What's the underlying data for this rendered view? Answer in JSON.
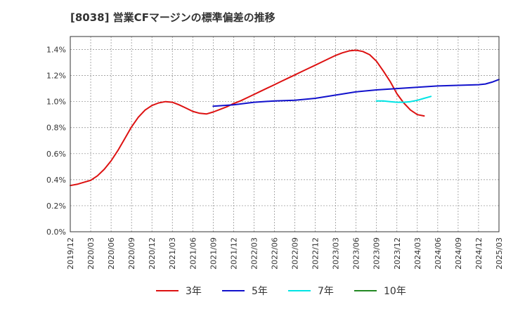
{
  "chart_data": {
    "type": "line",
    "title": "[8038]  営業CFマージンの標準偏差の推移",
    "xlabel": "",
    "ylabel": "",
    "ylim": [
      0,
      1.5
    ],
    "y_ticks": [
      0,
      0.2,
      0.4,
      0.6,
      0.8,
      1.0,
      1.2,
      1.4
    ],
    "y_tick_labels": [
      "0.0%",
      "0.2%",
      "0.4%",
      "0.6%",
      "0.8%",
      "1.0%",
      "1.2%",
      "1.4%"
    ],
    "x_tick_labels": [
      "2019/12",
      "2020/03",
      "2020/06",
      "2020/09",
      "2020/12",
      "2021/03",
      "2021/06",
      "2021/09",
      "2021/12",
      "2022/03",
      "2022/06",
      "2022/09",
      "2022/12",
      "2023/03",
      "2023/06",
      "2023/09",
      "2023/12",
      "2024/03",
      "2024/06",
      "2024/09",
      "2024/12",
      "2025/03"
    ],
    "grid": true,
    "legend_position": "bottom",
    "series": [
      {
        "name": "3年",
        "color": "#dd1111",
        "points": [
          [
            "2019/12",
            0.355
          ],
          [
            "2020/01",
            0.365
          ],
          [
            "2020/02",
            0.38
          ],
          [
            "2020/03",
            0.395
          ],
          [
            "2020/04",
            0.43
          ],
          [
            "2020/05",
            0.48
          ],
          [
            "2020/06",
            0.545
          ],
          [
            "2020/07",
            0.625
          ],
          [
            "2020/08",
            0.715
          ],
          [
            "2020/09",
            0.805
          ],
          [
            "2020/10",
            0.88
          ],
          [
            "2020/11",
            0.935
          ],
          [
            "2020/12",
            0.97
          ],
          [
            "2021/01",
            0.99
          ],
          [
            "2021/02",
            1.0
          ],
          [
            "2021/03",
            0.995
          ],
          [
            "2021/04",
            0.975
          ],
          [
            "2021/05",
            0.95
          ],
          [
            "2021/06",
            0.925
          ],
          [
            "2021/07",
            0.91
          ],
          [
            "2021/08",
            0.905
          ],
          [
            "2021/09",
            0.92
          ],
          [
            "2021/10",
            0.94
          ],
          [
            "2021/11",
            0.96
          ],
          [
            "2021/12",
            0.985
          ],
          [
            "2022/01",
            1.005
          ],
          [
            "2022/02",
            1.03
          ],
          [
            "2022/03",
            1.055
          ],
          [
            "2022/04",
            1.08
          ],
          [
            "2022/05",
            1.105
          ],
          [
            "2022/06",
            1.13
          ],
          [
            "2022/07",
            1.155
          ],
          [
            "2022/08",
            1.18
          ],
          [
            "2022/09",
            1.205
          ],
          [
            "2022/10",
            1.23
          ],
          [
            "2022/11",
            1.255
          ],
          [
            "2022/12",
            1.28
          ],
          [
            "2023/01",
            1.305
          ],
          [
            "2023/02",
            1.33
          ],
          [
            "2023/03",
            1.355
          ],
          [
            "2023/04",
            1.375
          ],
          [
            "2023/05",
            1.39
          ],
          [
            "2023/06",
            1.395
          ],
          [
            "2023/07",
            1.385
          ],
          [
            "2023/08",
            1.36
          ],
          [
            "2023/09",
            1.31
          ],
          [
            "2023/10",
            1.235
          ],
          [
            "2023/11",
            1.155
          ],
          [
            "2023/12",
            1.06
          ],
          [
            "2024/01",
            0.99
          ],
          [
            "2024/02",
            0.935
          ],
          [
            "2024/03",
            0.9
          ],
          [
            "2024/04",
            0.89
          ]
        ]
      },
      {
        "name": "5年",
        "color": "#1111cc",
        "points": [
          [
            "2021/09",
            0.965
          ],
          [
            "2021/12",
            0.975
          ],
          [
            "2022/03",
            0.995
          ],
          [
            "2022/06",
            1.005
          ],
          [
            "2022/09",
            1.01
          ],
          [
            "2022/12",
            1.025
          ],
          [
            "2023/03",
            1.05
          ],
          [
            "2023/06",
            1.075
          ],
          [
            "2023/09",
            1.09
          ],
          [
            "2023/12",
            1.1
          ],
          [
            "2024/03",
            1.11
          ],
          [
            "2024/06",
            1.12
          ],
          [
            "2024/09",
            1.125
          ],
          [
            "2024/12",
            1.13
          ],
          [
            "2025/01",
            1.135
          ],
          [
            "2025/02",
            1.15
          ],
          [
            "2025/03",
            1.17
          ]
        ]
      },
      {
        "name": "7年",
        "color": "#00e5e5",
        "points": [
          [
            "2023/09",
            1.005
          ],
          [
            "2023/10",
            1.005
          ],
          [
            "2023/11",
            1.0
          ],
          [
            "2023/12",
            0.995
          ],
          [
            "2024/01",
            0.995
          ],
          [
            "2024/02",
            1.0
          ],
          [
            "2024/03",
            1.01
          ],
          [
            "2024/04",
            1.025
          ],
          [
            "2024/05",
            1.04
          ]
        ]
      },
      {
        "name": "10年",
        "color": "#228822",
        "points": []
      }
    ]
  }
}
